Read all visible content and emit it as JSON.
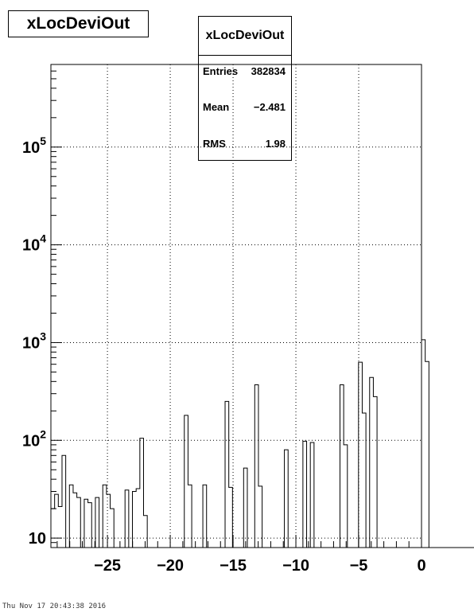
{
  "title": "xLocDeviOut",
  "stats": {
    "title": "xLocDeviOut",
    "rows": [
      {
        "label": "Entries",
        "value": "382834"
      },
      {
        "label": "Mean",
        "value": "−2.481"
      },
      {
        "label": "RMS",
        "value": "1.98"
      }
    ]
  },
  "footer": "Thu Nov 17 20:43:38 2016",
  "chart_data": {
    "type": "bar",
    "histogram": true,
    "title": "xLocDeviOut",
    "xlabel": "",
    "ylabel": "",
    "xlim": [
      -29.5,
      0
    ],
    "ylim": [
      8,
      700000
    ],
    "log_y": true,
    "grid": true,
    "legend": "none",
    "line_color": "#000000",
    "x_tick_labels": [
      "−25",
      "−20",
      "−15",
      "−10",
      "−5",
      "0"
    ],
    "x_tick_values": [
      -25,
      -20,
      -15,
      -10,
      -5,
      0
    ],
    "y_tick_labels": [
      {
        "value": 10,
        "base": "10",
        "exp": ""
      },
      {
        "value": 100,
        "base": "10",
        "exp": "2"
      },
      {
        "value": 1000,
        "base": "10",
        "exp": "3"
      },
      {
        "value": 10000,
        "base": "10",
        "exp": "4"
      },
      {
        "value": 100000,
        "base": "10",
        "exp": "5"
      }
    ],
    "bin_edges_start": -29.5,
    "bin_width": 0.295,
    "values": [
      20,
      28,
      21,
      70,
      0,
      35,
      29,
      26,
      0,
      25,
      23,
      0,
      26,
      0,
      35,
      28,
      20,
      0,
      0,
      0,
      31,
      0,
      30,
      32,
      105,
      17,
      0,
      0,
      0,
      0,
      0,
      0,
      0,
      0,
      0,
      0,
      180,
      35,
      0,
      0,
      0,
      35,
      0,
      0,
      0,
      0,
      0,
      250,
      33,
      0,
      0,
      0,
      52,
      0,
      0,
      370,
      34,
      0,
      0,
      0,
      0,
      0,
      0,
      80,
      0,
      0,
      0,
      0,
      98,
      0,
      95,
      0,
      0,
      0,
      0,
      0,
      0,
      0,
      370,
      90,
      0,
      0,
      0,
      630,
      190,
      0,
      440,
      280,
      0,
      0,
      0,
      0,
      0,
      0,
      0,
      0,
      0,
      0,
      0,
      0,
      1070,
      640,
      0,
      0,
      0,
      0,
      0,
      0,
      0,
      0,
      0,
      0,
      0,
      0,
      0,
      0,
      0,
      0,
      0,
      0
    ]
  }
}
